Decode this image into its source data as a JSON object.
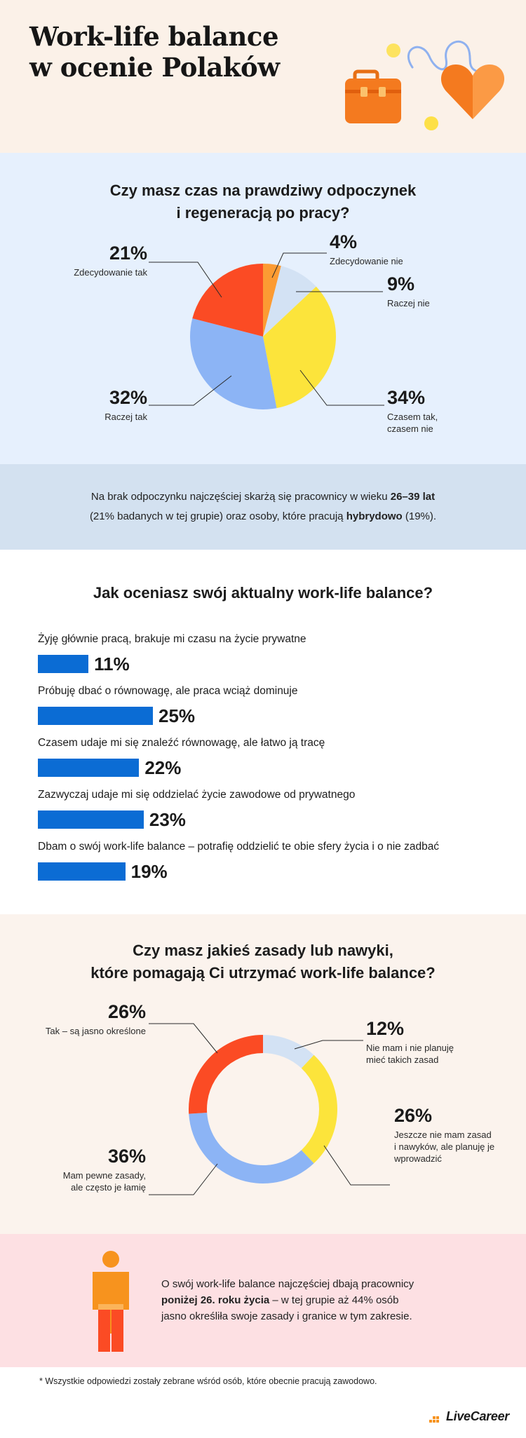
{
  "header": {
    "title_line1": "Work-life balance",
    "title_line2": "w ocenie Polaków",
    "colors": {
      "briefcase": "#f47a1f",
      "heart": "#f47a1f",
      "accent_yellow": "#fde047",
      "line_blue": "#8fb1ef"
    }
  },
  "rest_section": {
    "question_line1": "Czy masz czas na prawdziwy odpoczynek",
    "question_line2": "i regeneracją po pracy?",
    "labels": {
      "a_pct": "4%",
      "a_line1": "Zdecydowanie nie",
      "b_pct": "9%",
      "b_line1": "Raczej nie",
      "c_pct": "34%",
      "c_line1": "Czasem tak,",
      "c_line2": "czasem nie",
      "d_pct": "32%",
      "d_line1": "Raczej tak",
      "e_pct": "21%",
      "e_line1": "Zdecydowanie tak"
    }
  },
  "note1": {
    "part1": "Na brak odpoczynku najczęściej skarżą się pracownicy w wieku ",
    "bold1": "26–39 lat",
    "part2": "(21% badanych w tej grupie) oraz osoby, które pracują ",
    "bold2": "hybrydowo",
    "part3": " (19%)."
  },
  "wlb_section": {
    "question": "Jak oceniasz swój aktualny work-life balance?",
    "items": [
      {
        "label": "Żyję głównie pracą, brakuje mi czasu na życie prywatne",
        "value": 11,
        "value_label": "11%"
      },
      {
        "label": "Próbuję dbać o równowagę, ale praca wciąż dominuje",
        "value": 25,
        "value_label": "25%"
      },
      {
        "label": "Czasem udaje mi się znaleźć równowagę, ale łatwo ją tracę",
        "value": 22,
        "value_label": "22%"
      },
      {
        "label": "Zazwyczaj udaje mi się oddzielać życie zawodowe od prywatnego",
        "value": 23,
        "value_label": "23%"
      },
      {
        "label": "Dbam o swój work-life balance – potrafię oddzielić te obie sfery życia i o nie zadbać",
        "value": 19,
        "value_label": "19%"
      }
    ]
  },
  "rules_section": {
    "question_line1": "Czy masz jakieś zasady lub nawyki,",
    "question_line2": "które pomagają Ci utrzymać work-life balance?",
    "labels": {
      "a_pct": "12%",
      "a_line1": "Nie mam i nie planuję",
      "a_line2": "mieć takich zasad",
      "b_pct": "26%",
      "b_line1": "Jeszcze nie mam zasad",
      "b_line2": "i nawyków, ale planuję je",
      "b_line3": "wprowadzić",
      "c_pct": "36%",
      "c_line1": "Mam pewne zasady,",
      "c_line2": "ale często je łamię",
      "d_pct": "26%",
      "d_line1": "Tak – są jasno określone"
    }
  },
  "note2": {
    "part1": "O swój work-life balance najczęściej dbają pracownicy",
    "bold": "poniżej 26. roku życia",
    "part2": " – w tej grupie aż 44% osób",
    "part3": "jasno określiła swoje zasady i granice w tym zakresie."
  },
  "footer": {
    "note": "* Wszystkie odpowiedzi zostały zebrane wśród osób, które obecnie pracują zawodowo.",
    "logo": "LiveCareer"
  },
  "chart_data": [
    {
      "type": "pie",
      "title": "Czy masz czas na prawdziwy odpoczynek i regeneracją po pracy?",
      "categories": [
        "Zdecydowanie nie",
        "Raczej nie",
        "Czasem tak, czasem nie",
        "Raczej tak",
        "Zdecydowanie tak"
      ],
      "values": [
        4,
        9,
        34,
        32,
        21
      ],
      "colors": [
        "#fc9b33",
        "#d3e2f4",
        "#fce43b",
        "#8cb4f5",
        "#fb4b24"
      ]
    },
    {
      "type": "bar",
      "title": "Jak oceniasz swój aktualny work-life balance?",
      "orientation": "horizontal",
      "categories": [
        "Żyję głównie pracą, brakuje mi czasu na życie prywatne",
        "Próbuję dbać o równowagę, ale praca wciąż dominuje",
        "Czasem udaje mi się znaleźć równowagę, ale łatwo ją tracę",
        "Zazwyczaj udaje mi się oddzielać życie zawodowe od prywatnego",
        "Dbam o swój work-life balance – potrafię oddzielić te obie sfery życia i o nie zadbać"
      ],
      "values": [
        11,
        25,
        22,
        23,
        19
      ],
      "color": "#0b6cd4"
    },
    {
      "type": "pie",
      "variant": "donut",
      "title": "Czy masz jakieś zasady lub nawyki, które pomagają Ci utrzymać work-life balance?",
      "categories": [
        "Nie mam i nie planuję mieć takich zasad",
        "Jeszcze nie mam zasad i nawyków, ale planuję je wprowadzić",
        "Mam pewne zasady, ale często je łamię",
        "Tak – są jasno określone"
      ],
      "values": [
        12,
        26,
        36,
        26
      ],
      "colors": [
        "#d3e2f4",
        "#fce43b",
        "#8cb4f5",
        "#fb4b24"
      ]
    }
  ]
}
